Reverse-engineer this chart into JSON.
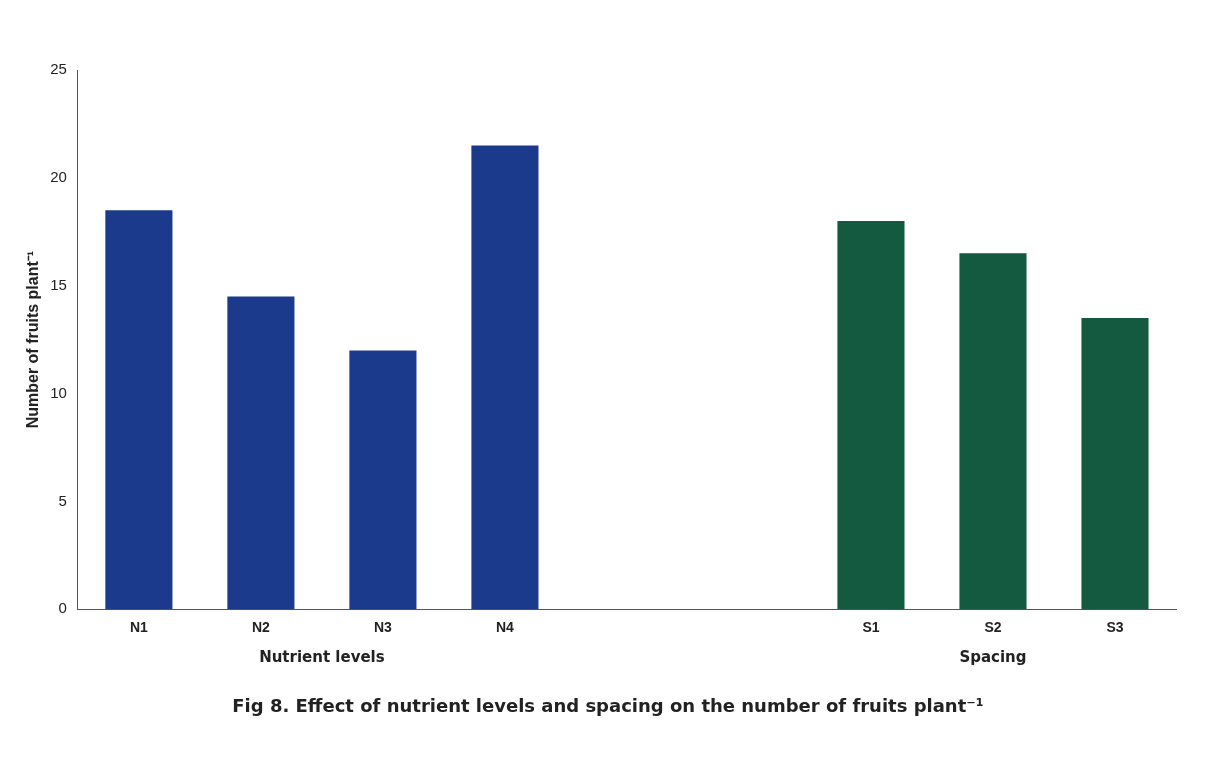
{
  "chart_data": {
    "type": "bar",
    "title": "Fig 8. Effect of nutrient levels and spacing on the number of fruits plant⁻¹",
    "ylabel": "Number of fruits plant⁻¹",
    "categories": [
      "N1",
      "N2",
      "N3",
      "N4",
      null,
      null,
      "S1",
      "S2",
      "S3"
    ],
    "values": [
      18.5,
      14.5,
      12,
      21.5,
      null,
      null,
      18,
      16.5,
      13.5
    ],
    "colors": [
      "#1c3a8c",
      "#1c3a8c",
      "#1c3a8c",
      "#1c3a8c",
      "#1c3a8c",
      "#1c3a8c",
      "#145a40",
      "#145a40",
      "#145a40"
    ],
    "ylim": [
      0,
      25
    ],
    "yticks": [
      0,
      5,
      10,
      15,
      20,
      25
    ],
    "grid": false,
    "legend": false,
    "annotations": [
      "Nutrient levels",
      "Spacing"
    ]
  }
}
